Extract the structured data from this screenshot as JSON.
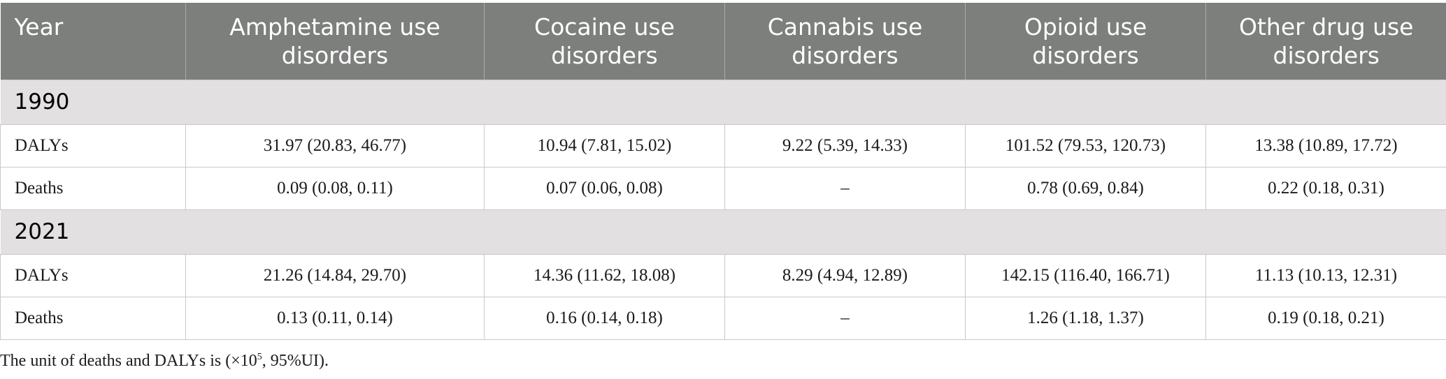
{
  "table": {
    "headers": [
      "Year",
      "Amphetamine use disorders",
      "Cocaine use disorders",
      "Cannabis use disorders",
      "Opioid use disorders",
      "Other drug use disorders"
    ],
    "groups": [
      {
        "year": "1990",
        "rows": [
          {
            "label": "DALYs",
            "cells": [
              "31.97 (20.83, 46.77)",
              "10.94 (7.81, 15.02)",
              "9.22 (5.39, 14.33)",
              "101.52 (79.53, 120.73)",
              "13.38 (10.89, 17.72)"
            ]
          },
          {
            "label": "Deaths",
            "cells": [
              "0.09 (0.08, 0.11)",
              "0.07 (0.06, 0.08)",
              "–",
              "0.78 (0.69, 0.84)",
              "0.22 (0.18, 0.31)"
            ]
          }
        ]
      },
      {
        "year": "2021",
        "rows": [
          {
            "label": "DALYs",
            "cells": [
              "21.26 (14.84, 29.70)",
              "14.36 (11.62, 18.08)",
              "8.29 (4.94, 12.89)",
              "142.15 (116.40, 166.71)",
              "11.13 (10.13, 12.31)"
            ]
          },
          {
            "label": "Deaths",
            "cells": [
              "0.13 (0.11, 0.14)",
              "0.16 (0.14, 0.18)",
              "–",
              "1.26 (1.18, 1.37)",
              "0.19 (0.18, 0.21)"
            ]
          }
        ]
      }
    ]
  },
  "footnote": {
    "prefix": "The unit of deaths and DALYs is (×10",
    "exponent": "5",
    "suffix": ", 95%UI)."
  },
  "colors": {
    "header_bg": "#7d7f7d",
    "group_bg": "#e2e0e1",
    "border": "#c9c9c9"
  }
}
